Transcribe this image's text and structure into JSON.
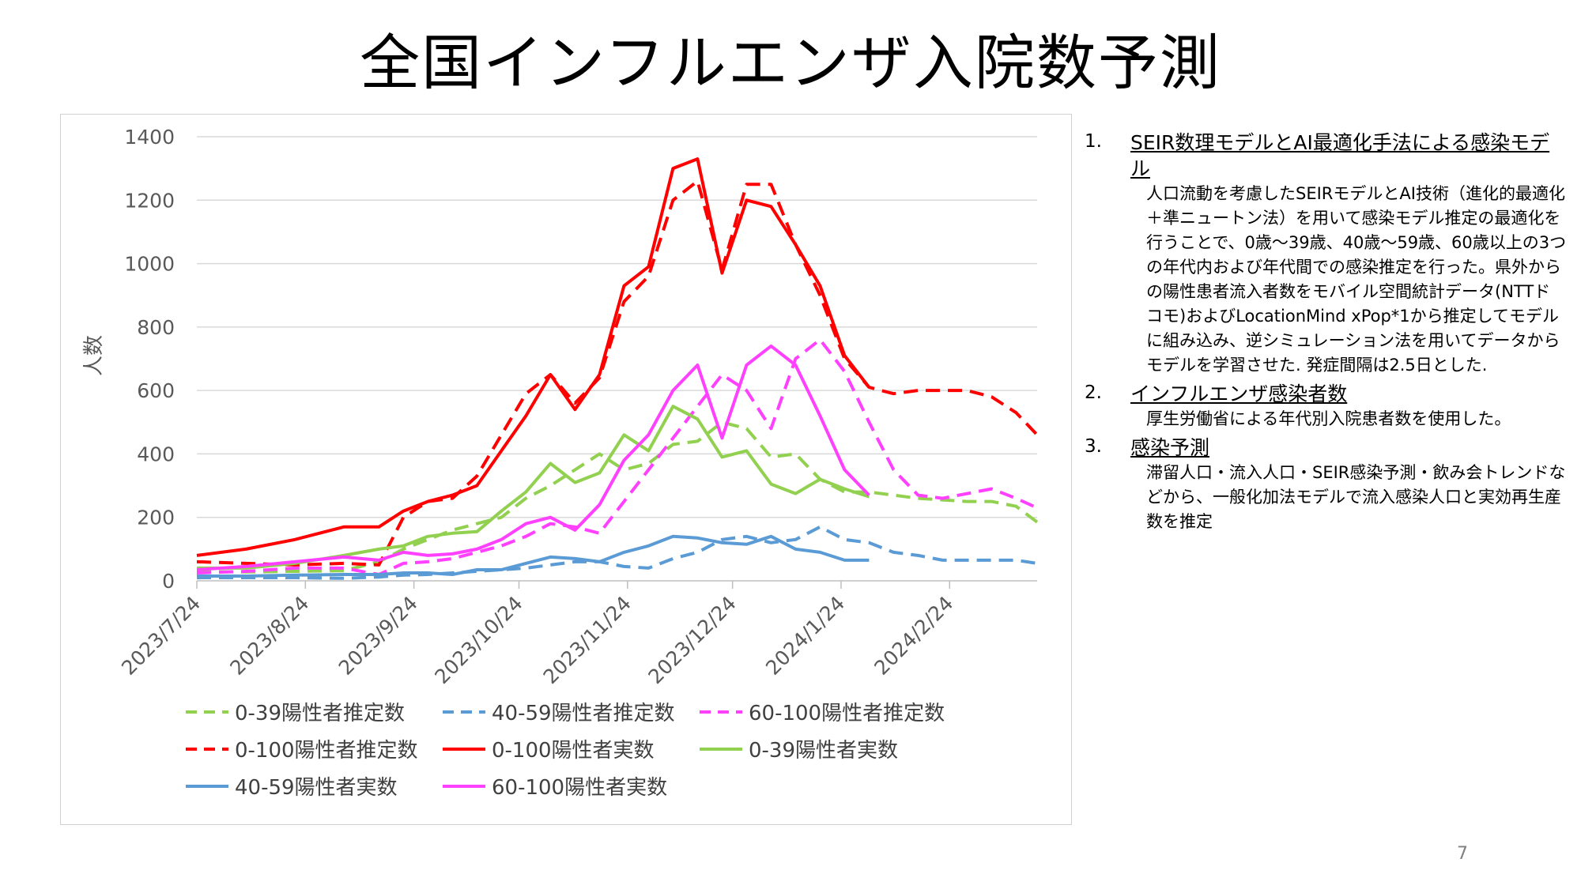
{
  "slide": {
    "title": "全国インフルエンザ入院数予測",
    "page_number": "7"
  },
  "notes": [
    {
      "number": "1.",
      "heading": "SEIR数理モデルとAI最適化手法による感染モデル",
      "body": "人口流動を考慮したSEIRモデルとAI技術（進化的最適化＋準ニュートン法）を用いて感染モデル推定の最適化を行うことで、0歳～39歳、40歳～59歳、60歳以上の3つの年代内および年代間での感染推定を行った。県外からの陽性患者流入者数をモバイル空間統計データ(NTTドコモ)およびLocationMind xPop*1から推定してモデルに組み込み、逆シミュレーション法を用いてデータからモデルを学習させた. 発症間隔は2.5日とした."
    },
    {
      "number": "2.",
      "heading": "インフルエンザ感染者数",
      "body": "厚生労働省による年代別入院患者数を使用した。"
    },
    {
      "number": "3.",
      "heading": "感染予測",
      "body": "滞留人口・流入人口・SEIR感染予測・飲み会トレンドなどから、一般化加法モデルで流入感染人口と実効再生産数を推定"
    }
  ],
  "chart_data": {
    "type": "line",
    "title": "",
    "xlabel": "",
    "ylabel": "人数",
    "ylim": [
      0,
      1400
    ],
    "yticks": [
      0,
      200,
      400,
      600,
      800,
      1000,
      1200,
      1400
    ],
    "xlim": [
      "2023-07-24",
      "2024-03-20"
    ],
    "xticks": [
      "2023/7/24",
      "2023/8/24",
      "2023/9/24",
      "2023/10/24",
      "2023/11/24",
      "2023/12/24",
      "2024/1/24",
      "2024/2/24"
    ],
    "grid": "horizontal",
    "legend_position": "bottom",
    "series": [
      {
        "name": "0-39陽性者推定数",
        "color": "#92d050",
        "dash": true,
        "points": [
          [
            "2023-07-24",
            30
          ],
          [
            "2023-08-07",
            28
          ],
          [
            "2023-08-21",
            30
          ],
          [
            "2023-09-04",
            32
          ],
          [
            "2023-09-14",
            60
          ],
          [
            "2023-09-21",
            100
          ],
          [
            "2023-09-28",
            130
          ],
          [
            "2023-10-05",
            160
          ],
          [
            "2023-10-12",
            180
          ],
          [
            "2023-10-19",
            200
          ],
          [
            "2023-10-26",
            260
          ],
          [
            "2023-11-02",
            300
          ],
          [
            "2023-11-09",
            350
          ],
          [
            "2023-11-16",
            400
          ],
          [
            "2023-11-23",
            350
          ],
          [
            "2023-11-30",
            370
          ],
          [
            "2023-12-07",
            430
          ],
          [
            "2023-12-14",
            440
          ],
          [
            "2023-12-21",
            500
          ],
          [
            "2023-12-28",
            480
          ],
          [
            "2024-01-04",
            390
          ],
          [
            "2024-01-11",
            400
          ],
          [
            "2024-01-18",
            320
          ],
          [
            "2024-01-25",
            280
          ],
          [
            "2024-02-01",
            280
          ],
          [
            "2024-02-08",
            270
          ],
          [
            "2024-02-15",
            260
          ],
          [
            "2024-02-22",
            255
          ],
          [
            "2024-02-29",
            250
          ],
          [
            "2024-03-07",
            250
          ],
          [
            "2024-03-14",
            235
          ],
          [
            "2024-03-20",
            185
          ]
        ]
      },
      {
        "name": "40-59陽性者推定数",
        "color": "#5b9bd5",
        "dash": true,
        "points": [
          [
            "2023-07-24",
            10
          ],
          [
            "2023-08-07",
            10
          ],
          [
            "2023-08-21",
            10
          ],
          [
            "2023-09-04",
            8
          ],
          [
            "2023-09-14",
            12
          ],
          [
            "2023-09-21",
            18
          ],
          [
            "2023-09-28",
            20
          ],
          [
            "2023-10-05",
            25
          ],
          [
            "2023-10-12",
            30
          ],
          [
            "2023-10-19",
            35
          ],
          [
            "2023-10-26",
            40
          ],
          [
            "2023-11-02",
            50
          ],
          [
            "2023-11-09",
            60
          ],
          [
            "2023-11-16",
            60
          ],
          [
            "2023-11-23",
            45
          ],
          [
            "2023-11-30",
            40
          ],
          [
            "2023-12-07",
            70
          ],
          [
            "2023-12-14",
            90
          ],
          [
            "2023-12-21",
            130
          ],
          [
            "2023-12-28",
            140
          ],
          [
            "2024-01-04",
            120
          ],
          [
            "2024-01-11",
            130
          ],
          [
            "2024-01-18",
            170
          ],
          [
            "2024-01-25",
            130
          ],
          [
            "2024-02-01",
            120
          ],
          [
            "2024-02-08",
            90
          ],
          [
            "2024-02-15",
            80
          ],
          [
            "2024-02-22",
            65
          ],
          [
            "2024-02-29",
            65
          ],
          [
            "2024-03-07",
            65
          ],
          [
            "2024-03-14",
            65
          ],
          [
            "2024-03-20",
            55
          ]
        ]
      },
      {
        "name": "60-100陽性者推定数",
        "color": "#ff40ff",
        "dash": true,
        "points": [
          [
            "2023-07-24",
            25
          ],
          [
            "2023-08-07",
            30
          ],
          [
            "2023-08-21",
            40
          ],
          [
            "2023-09-04",
            40
          ],
          [
            "2023-09-14",
            20
          ],
          [
            "2023-09-21",
            55
          ],
          [
            "2023-09-28",
            60
          ],
          [
            "2023-10-05",
            70
          ],
          [
            "2023-10-12",
            90
          ],
          [
            "2023-10-19",
            110
          ],
          [
            "2023-10-26",
            140
          ],
          [
            "2023-11-02",
            180
          ],
          [
            "2023-11-09",
            170
          ],
          [
            "2023-11-16",
            150
          ],
          [
            "2023-11-23",
            250
          ],
          [
            "2023-11-30",
            350
          ],
          [
            "2023-12-07",
            450
          ],
          [
            "2023-12-14",
            550
          ],
          [
            "2023-12-21",
            650
          ],
          [
            "2023-12-28",
            600
          ],
          [
            "2024-01-04",
            480
          ],
          [
            "2024-01-11",
            700
          ],
          [
            "2024-01-18",
            760
          ],
          [
            "2024-01-25",
            660
          ],
          [
            "2024-02-01",
            500
          ],
          [
            "2024-02-08",
            350
          ],
          [
            "2024-02-15",
            270
          ],
          [
            "2024-02-22",
            260
          ],
          [
            "2024-02-29",
            275
          ],
          [
            "2024-03-07",
            290
          ],
          [
            "2024-03-14",
            260
          ],
          [
            "2024-03-20",
            230
          ]
        ]
      },
      {
        "name": "0-100陽性者推定数",
        "color": "#ff0000",
        "dash": true,
        "points": [
          [
            "2023-07-24",
            60
          ],
          [
            "2023-08-07",
            55
          ],
          [
            "2023-08-21",
            50
          ],
          [
            "2023-09-04",
            55
          ],
          [
            "2023-09-14",
            50
          ],
          [
            "2023-09-21",
            200
          ],
          [
            "2023-09-28",
            250
          ],
          [
            "2023-10-05",
            260
          ],
          [
            "2023-10-12",
            330
          ],
          [
            "2023-10-19",
            460
          ],
          [
            "2023-10-26",
            590
          ],
          [
            "2023-11-02",
            650
          ],
          [
            "2023-11-09",
            560
          ],
          [
            "2023-11-16",
            640
          ],
          [
            "2023-11-23",
            880
          ],
          [
            "2023-11-30",
            960
          ],
          [
            "2023-12-07",
            1200
          ],
          [
            "2023-12-14",
            1260
          ],
          [
            "2023-12-21",
            980
          ],
          [
            "2023-12-28",
            1250
          ],
          [
            "2024-01-04",
            1250
          ],
          [
            "2024-01-11",
            1060
          ],
          [
            "2024-01-18",
            900
          ],
          [
            "2024-01-25",
            700
          ],
          [
            "2024-02-01",
            610
          ],
          [
            "2024-02-08",
            590
          ],
          [
            "2024-02-15",
            600
          ],
          [
            "2024-02-22",
            600
          ],
          [
            "2024-02-29",
            600
          ],
          [
            "2024-03-07",
            580
          ],
          [
            "2024-03-14",
            530
          ],
          [
            "2024-03-20",
            460
          ]
        ]
      },
      {
        "name": "0-100陽性者実数",
        "color": "#ff0000",
        "dash": false,
        "points": [
          [
            "2023-07-24",
            80
          ],
          [
            "2023-08-07",
            100
          ],
          [
            "2023-08-21",
            130
          ],
          [
            "2023-09-04",
            170
          ],
          [
            "2023-09-14",
            170
          ],
          [
            "2023-09-21",
            220
          ],
          [
            "2023-09-28",
            250
          ],
          [
            "2023-10-05",
            270
          ],
          [
            "2023-10-12",
            300
          ],
          [
            "2023-10-19",
            410
          ],
          [
            "2023-10-26",
            520
          ],
          [
            "2023-11-02",
            650
          ],
          [
            "2023-11-09",
            540
          ],
          [
            "2023-11-16",
            650
          ],
          [
            "2023-11-23",
            930
          ],
          [
            "2023-11-30",
            990
          ],
          [
            "2023-12-07",
            1300
          ],
          [
            "2023-12-14",
            1330
          ],
          [
            "2023-12-21",
            970
          ],
          [
            "2023-12-28",
            1200
          ],
          [
            "2024-01-04",
            1180
          ],
          [
            "2024-01-11",
            1060
          ],
          [
            "2024-01-18",
            930
          ],
          [
            "2024-01-25",
            710
          ],
          [
            "2024-02-01",
            610
          ]
        ]
      },
      {
        "name": "0-39陽性者実数",
        "color": "#92d050",
        "dash": false,
        "points": [
          [
            "2023-07-24",
            40
          ],
          [
            "2023-08-07",
            40
          ],
          [
            "2023-08-21",
            55
          ],
          [
            "2023-09-04",
            80
          ],
          [
            "2023-09-14",
            100
          ],
          [
            "2023-09-21",
            110
          ],
          [
            "2023-09-28",
            140
          ],
          [
            "2023-10-05",
            150
          ],
          [
            "2023-10-12",
            155
          ],
          [
            "2023-10-19",
            220
          ],
          [
            "2023-10-26",
            280
          ],
          [
            "2023-11-02",
            370
          ],
          [
            "2023-11-09",
            310
          ],
          [
            "2023-11-16",
            340
          ],
          [
            "2023-11-23",
            460
          ],
          [
            "2023-11-30",
            410
          ],
          [
            "2023-12-07",
            550
          ],
          [
            "2023-12-14",
            510
          ],
          [
            "2023-12-21",
            390
          ],
          [
            "2023-12-28",
            410
          ],
          [
            "2024-01-04",
            305
          ],
          [
            "2024-01-11",
            275
          ],
          [
            "2024-01-18",
            320
          ],
          [
            "2024-01-25",
            290
          ],
          [
            "2024-02-01",
            265
          ]
        ]
      },
      {
        "name": "40-59陽性者実数",
        "color": "#5b9bd5",
        "dash": false,
        "points": [
          [
            "2023-07-24",
            15
          ],
          [
            "2023-08-07",
            15
          ],
          [
            "2023-08-21",
            18
          ],
          [
            "2023-09-04",
            20
          ],
          [
            "2023-09-14",
            20
          ],
          [
            "2023-09-21",
            25
          ],
          [
            "2023-09-28",
            25
          ],
          [
            "2023-10-05",
            20
          ],
          [
            "2023-10-12",
            35
          ],
          [
            "2023-10-19",
            35
          ],
          [
            "2023-10-26",
            55
          ],
          [
            "2023-11-02",
            75
          ],
          [
            "2023-11-09",
            70
          ],
          [
            "2023-11-16",
            60
          ],
          [
            "2023-11-23",
            90
          ],
          [
            "2023-11-30",
            110
          ],
          [
            "2023-12-07",
            140
          ],
          [
            "2023-12-14",
            135
          ],
          [
            "2023-12-21",
            120
          ],
          [
            "2023-12-28",
            115
          ],
          [
            "2024-01-04",
            140
          ],
          [
            "2024-01-11",
            100
          ],
          [
            "2024-01-18",
            90
          ],
          [
            "2024-01-25",
            65
          ],
          [
            "2024-02-01",
            65
          ]
        ]
      },
      {
        "name": "60-100陽性者実数",
        "color": "#ff40ff",
        "dash": false,
        "points": [
          [
            "2023-07-24",
            35
          ],
          [
            "2023-08-07",
            45
          ],
          [
            "2023-08-21",
            60
          ],
          [
            "2023-09-04",
            75
          ],
          [
            "2023-09-14",
            65
          ],
          [
            "2023-09-21",
            90
          ],
          [
            "2023-09-28",
            80
          ],
          [
            "2023-10-05",
            85
          ],
          [
            "2023-10-12",
            100
          ],
          [
            "2023-10-19",
            130
          ],
          [
            "2023-10-26",
            180
          ],
          [
            "2023-11-02",
            200
          ],
          [
            "2023-11-09",
            160
          ],
          [
            "2023-11-16",
            240
          ],
          [
            "2023-11-23",
            380
          ],
          [
            "2023-11-30",
            460
          ],
          [
            "2023-12-07",
            600
          ],
          [
            "2023-12-14",
            680
          ],
          [
            "2023-12-21",
            450
          ],
          [
            "2023-12-28",
            680
          ],
          [
            "2024-01-04",
            740
          ],
          [
            "2024-01-11",
            680
          ],
          [
            "2024-01-18",
            520
          ],
          [
            "2024-01-25",
            350
          ],
          [
            "2024-02-01",
            270
          ]
        ]
      }
    ]
  }
}
